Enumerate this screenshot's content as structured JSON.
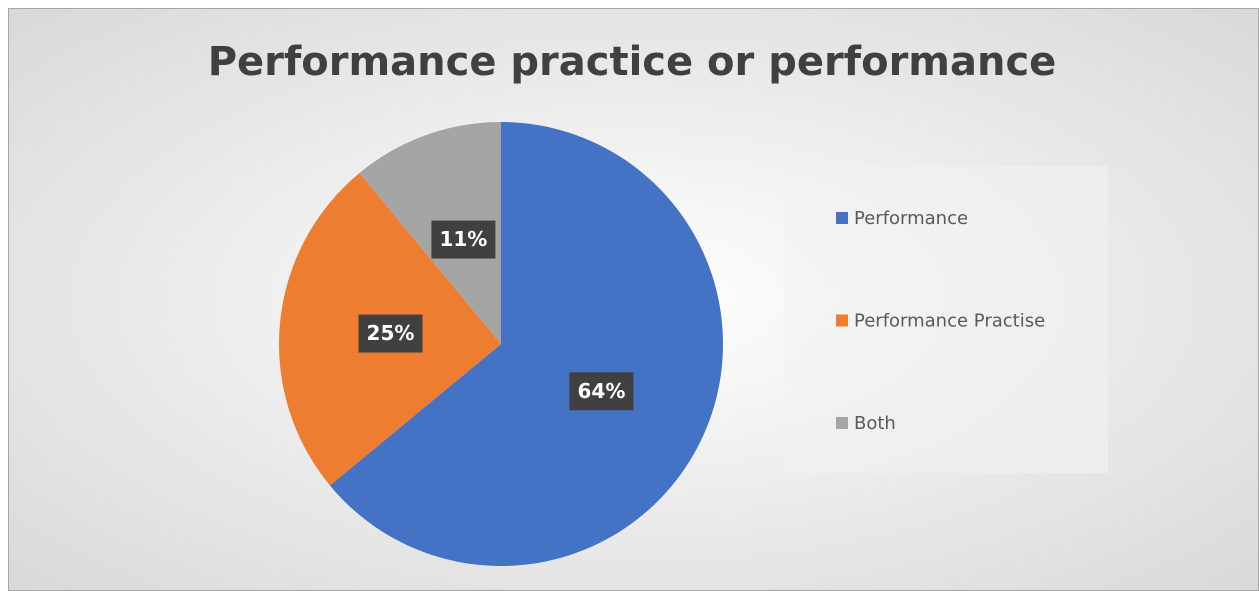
{
  "chart_data": {
    "type": "pie",
    "title": "Performance practice or performance",
    "categories": [
      "Performance",
      "Performance Practise",
      "Both"
    ],
    "values": [
      64,
      25,
      11
    ],
    "value_labels": [
      "64%",
      "25%",
      "11%"
    ],
    "colors": [
      "#4472c4",
      "#ed7d31",
      "#a5a5a5"
    ],
    "legend": "right"
  }
}
